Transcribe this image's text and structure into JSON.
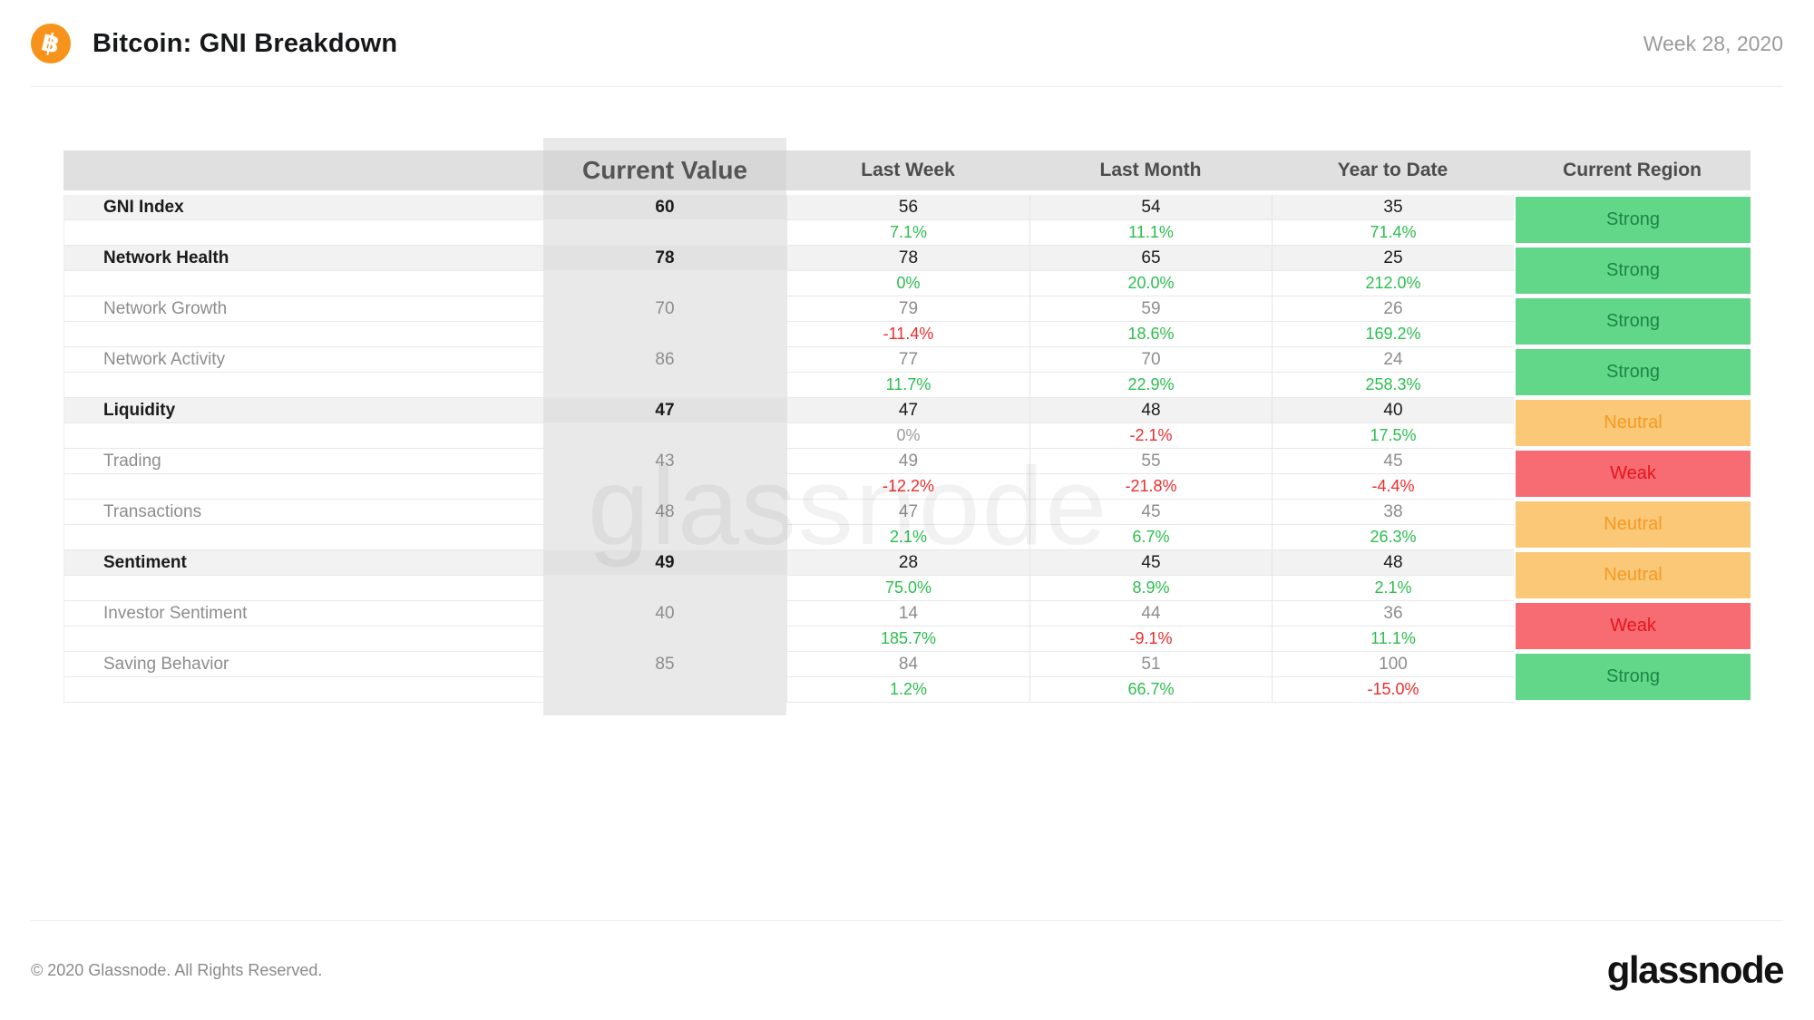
{
  "header": {
    "icon_glyph": "฿",
    "title": "Bitcoin: GNI Breakdown",
    "period": "Week 28, 2020"
  },
  "colors": {
    "bitcoin_orange": "#f7931a",
    "positive_green": "#2cbe4e",
    "negative_red": "#ee2c2c",
    "neutral_gray": "#9b9b9b",
    "badge_strong_bg": "#62d78a",
    "badge_strong_text": "#1d8545",
    "badge_neutral_bg": "#fbc878",
    "badge_neutral_text": "#f59a23",
    "badge_weak_bg": "#f76b72",
    "badge_weak_text": "#e5161f"
  },
  "table": {
    "columns": {
      "metric": "",
      "current_value": "Current Value",
      "last_week": "Last Week",
      "last_month": "Last Month",
      "year_to_date": "Year to Date",
      "current_region": "Current Region"
    },
    "rows": [
      {
        "name": "GNI Index",
        "type": "category",
        "current_value": "60",
        "last_week": "56",
        "last_month": "54",
        "year_to_date": "35",
        "change_last_week": {
          "text": "7.1%",
          "color": "green"
        },
        "change_last_month": {
          "text": "11.1%",
          "color": "green"
        },
        "change_year_to_date": {
          "text": "71.4%",
          "color": "green"
        },
        "region": {
          "label": "Strong",
          "level": "strong"
        }
      },
      {
        "name": "Network Health",
        "type": "category",
        "current_value": "78",
        "last_week": "78",
        "last_month": "65",
        "year_to_date": "25",
        "change_last_week": {
          "text": "0%",
          "color": "green"
        },
        "change_last_month": {
          "text": "20.0%",
          "color": "green"
        },
        "change_year_to_date": {
          "text": "212.0%",
          "color": "green"
        },
        "region": {
          "label": "Strong",
          "level": "strong"
        }
      },
      {
        "name": "Network Growth",
        "type": "sub",
        "current_value": "70",
        "last_week": "79",
        "last_month": "59",
        "year_to_date": "26",
        "change_last_week": {
          "text": "-11.4%",
          "color": "red"
        },
        "change_last_month": {
          "text": "18.6%",
          "color": "green"
        },
        "change_year_to_date": {
          "text": "169.2%",
          "color": "green"
        },
        "region": {
          "label": "Strong",
          "level": "strong"
        }
      },
      {
        "name": "Network Activity",
        "type": "sub",
        "current_value": "86",
        "last_week": "77",
        "last_month": "70",
        "year_to_date": "24",
        "change_last_week": {
          "text": "11.7%",
          "color": "green"
        },
        "change_last_month": {
          "text": "22.9%",
          "color": "green"
        },
        "change_year_to_date": {
          "text": "258.3%",
          "color": "green"
        },
        "region": {
          "label": "Strong",
          "level": "strong"
        }
      },
      {
        "name": "Liquidity",
        "type": "category",
        "current_value": "47",
        "last_week": "47",
        "last_month": "48",
        "year_to_date": "40",
        "change_last_week": {
          "text": "0%",
          "color": "gray"
        },
        "change_last_month": {
          "text": "-2.1%",
          "color": "red"
        },
        "change_year_to_date": {
          "text": "17.5%",
          "color": "green"
        },
        "region": {
          "label": "Neutral",
          "level": "neutral"
        }
      },
      {
        "name": "Trading",
        "type": "sub",
        "current_value": "43",
        "last_week": "49",
        "last_month": "55",
        "year_to_date": "45",
        "change_last_week": {
          "text": "-12.2%",
          "color": "red"
        },
        "change_last_month": {
          "text": "-21.8%",
          "color": "red"
        },
        "change_year_to_date": {
          "text": "-4.4%",
          "color": "red"
        },
        "region": {
          "label": "Weak",
          "level": "weak"
        }
      },
      {
        "name": "Transactions",
        "type": "sub",
        "current_value": "48",
        "last_week": "47",
        "last_month": "45",
        "year_to_date": "38",
        "change_last_week": {
          "text": "2.1%",
          "color": "green"
        },
        "change_last_month": {
          "text": "6.7%",
          "color": "green"
        },
        "change_year_to_date": {
          "text": "26.3%",
          "color": "green"
        },
        "region": {
          "label": "Neutral",
          "level": "neutral"
        }
      },
      {
        "name": "Sentiment",
        "type": "category",
        "current_value": "49",
        "last_week": "28",
        "last_month": "45",
        "year_to_date": "48",
        "change_last_week": {
          "text": "75.0%",
          "color": "green"
        },
        "change_last_month": {
          "text": "8.9%",
          "color": "green"
        },
        "change_year_to_date": {
          "text": "2.1%",
          "color": "green"
        },
        "region": {
          "label": "Neutral",
          "level": "neutral"
        }
      },
      {
        "name": "Investor Sentiment",
        "type": "sub",
        "current_value": "40",
        "last_week": "14",
        "last_month": "44",
        "year_to_date": "36",
        "change_last_week": {
          "text": "185.7%",
          "color": "green"
        },
        "change_last_month": {
          "text": "-9.1%",
          "color": "red"
        },
        "change_year_to_date": {
          "text": "11.1%",
          "color": "green"
        },
        "region": {
          "label": "Weak",
          "level": "weak"
        }
      },
      {
        "name": "Saving Behavior",
        "type": "sub",
        "current_value": "85",
        "last_week": "84",
        "last_month": "51",
        "year_to_date": "100",
        "change_last_week": {
          "text": "1.2%",
          "color": "green"
        },
        "change_last_month": {
          "text": "66.7%",
          "color": "green"
        },
        "change_year_to_date": {
          "text": "-15.0%",
          "color": "red"
        },
        "region": {
          "label": "Strong",
          "level": "strong"
        }
      }
    ]
  },
  "watermark": "glassnode",
  "footer": {
    "copyright": "© 2020 Glassnode. All Rights Reserved.",
    "brand": "glassnode"
  }
}
